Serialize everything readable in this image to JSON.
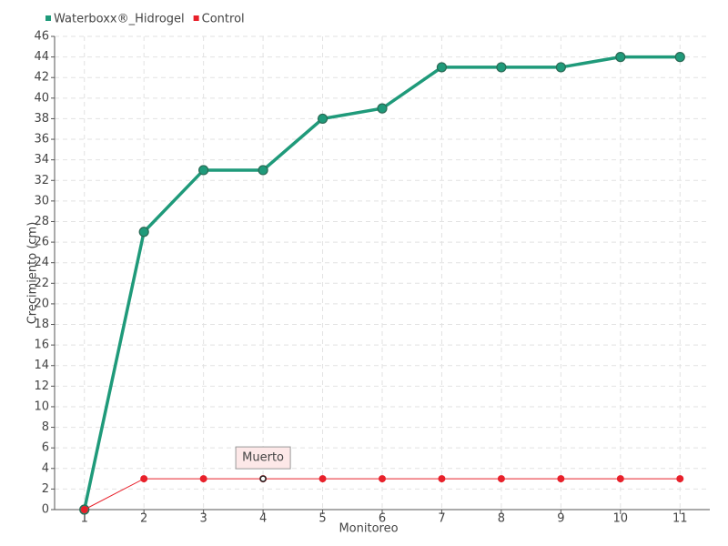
{
  "chart_data": {
    "type": "line",
    "x_label": "Monitoreo",
    "y_label": "Crecimiento (cm)",
    "categories": [
      "1",
      "2",
      "3",
      "4",
      "5",
      "6",
      "7",
      "8",
      "9",
      "10",
      "11"
    ],
    "series": [
      {
        "name": "Waterboxx®_Hidrogel",
        "color": "#1f9a7a",
        "values": [
          0,
          27,
          33,
          33,
          38,
          39,
          43,
          43,
          43,
          44,
          44
        ]
      },
      {
        "name": "Control",
        "color": "#e8202a",
        "values": [
          0,
          3,
          3,
          3,
          3,
          3,
          3,
          3,
          3,
          3,
          3
        ]
      }
    ],
    "annotations": [
      {
        "text": "Muerto",
        "x": "4",
        "y": 3
      }
    ],
    "ylim": [
      0,
      46
    ],
    "yticks": [
      0,
      2,
      4,
      6,
      8,
      10,
      12,
      14,
      16,
      18,
      20,
      22,
      24,
      26,
      28,
      30,
      32,
      34,
      36,
      38,
      40,
      42,
      44,
      46
    ],
    "grid": true,
    "legend": "top-left"
  }
}
